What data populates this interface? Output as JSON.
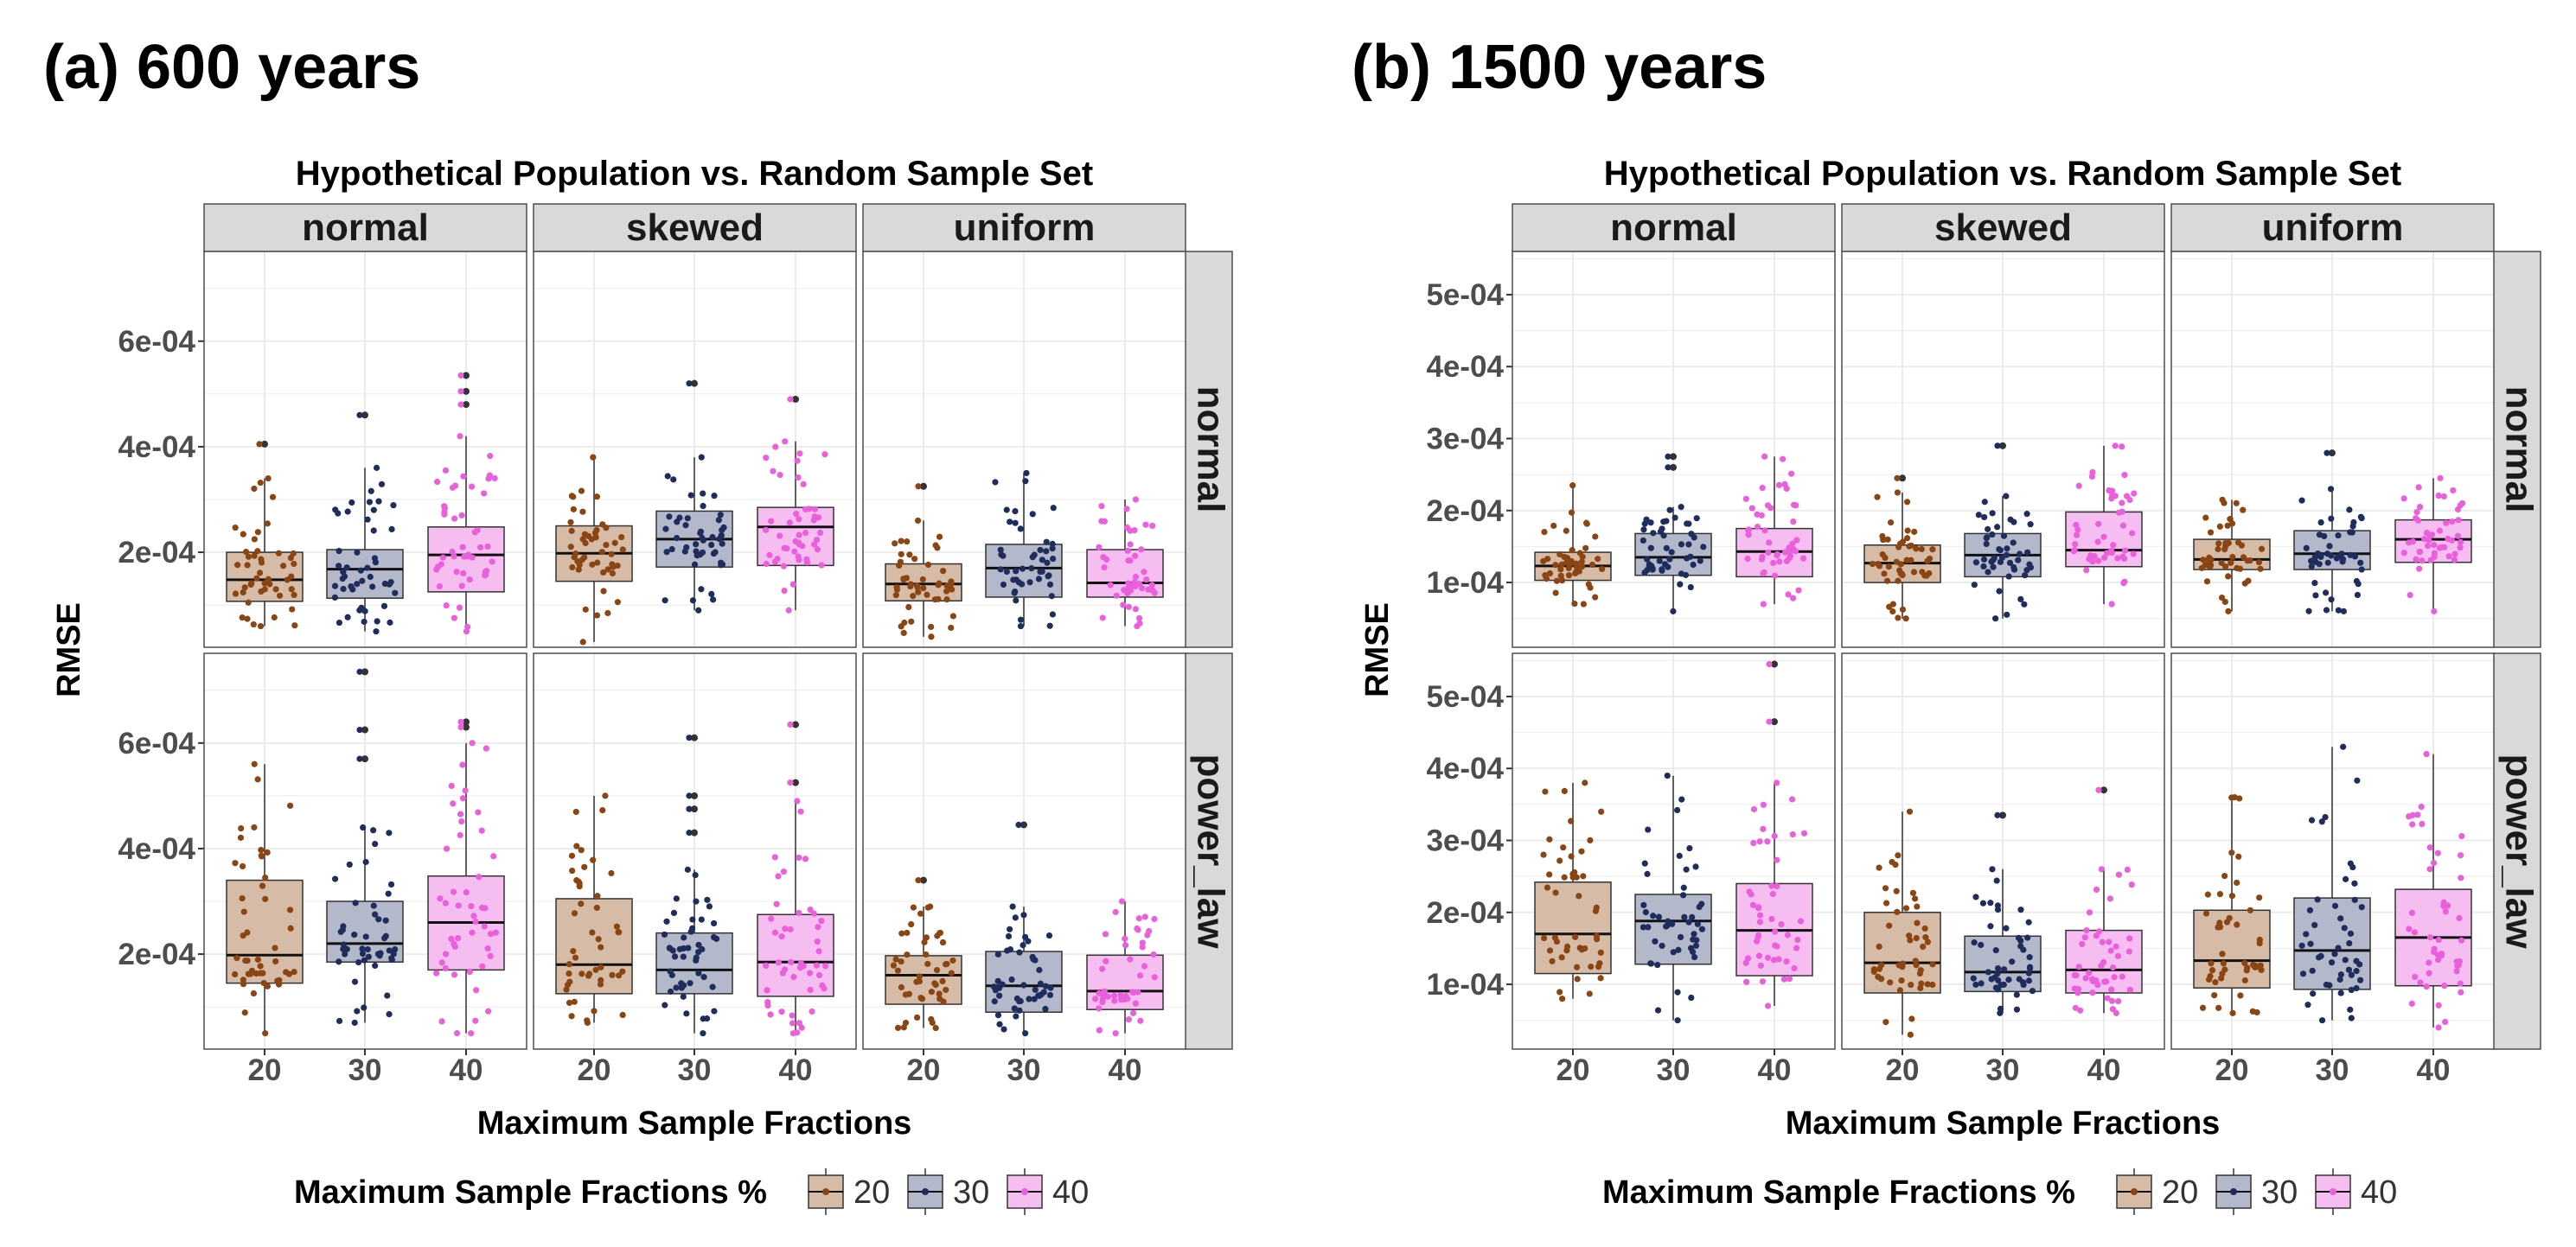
{
  "panels": [
    {
      "heading": "(a) 600 years"
    },
    {
      "heading": "(b) 1500 years"
    }
  ],
  "colors": {
    "fill": {
      "20": "#d6bca6",
      "30": "#b4b8cb",
      "40": "#f5bdf0"
    },
    "points": {
      "20": "#8b4513",
      "30": "#1f2d5c",
      "40": "#ea5fdb"
    },
    "strip_fill": "#d9d9d9",
    "grid": "#ebebeb",
    "panel_border": "#4d4d4d"
  },
  "chart_data": [
    {
      "type": "boxplot",
      "heading": "(a) 600 years",
      "title": "Hypothetical Population vs. Random Sample Set",
      "xlabel": "Maximum Sample Fractions",
      "ylabel": "RMSE",
      "facet_cols": [
        "normal",
        "skewed",
        "uniform"
      ],
      "facet_rows": [
        "normal",
        "power_law"
      ],
      "categories": [
        "20",
        "30",
        "40"
      ],
      "ylim": [
        2e-05,
        0.00077
      ],
      "yticks": [
        0.0002,
        0.0004,
        0.0006
      ],
      "ytick_labels": [
        "2e-04",
        "4e-04",
        "6e-04"
      ],
      "legend": {
        "title": "Maximum Sample Fractions %",
        "items": [
          "20",
          "30",
          "40"
        ],
        "position": "bottom"
      },
      "grid": true,
      "facets": [
        {
          "row": "normal",
          "col": "normal",
          "boxes": [
            {
              "category": "20",
              "min": 6e-05,
              "q1": 0.000107,
              "median": 0.000148,
              "q3": 0.0002,
              "max": 0.00034,
              "outliers": [
                0.000405
              ]
            },
            {
              "category": "30",
              "min": 5e-05,
              "q1": 0.000113,
              "median": 0.000168,
              "q3": 0.000205,
              "max": 0.00036,
              "outliers": [
                0.00046
              ]
            },
            {
              "category": "40",
              "min": 5e-05,
              "q1": 0.000125,
              "median": 0.000195,
              "q3": 0.000248,
              "max": 0.00042,
              "outliers": [
                0.00048,
                0.000505,
                0.000535
              ]
            }
          ]
        },
        {
          "row": "normal",
          "col": "skewed",
          "boxes": [
            {
              "category": "20",
              "min": 3e-05,
              "q1": 0.000145,
              "median": 0.000198,
              "q3": 0.00025,
              "max": 0.00038,
              "outliers": []
            },
            {
              "category": "30",
              "min": 9e-05,
              "q1": 0.000172,
              "median": 0.000225,
              "q3": 0.000278,
              "max": 0.00038,
              "outliers": [
                0.00052
              ]
            },
            {
              "category": "40",
              "min": 9e-05,
              "q1": 0.000175,
              "median": 0.000248,
              "q3": 0.000285,
              "max": 0.00041,
              "outliers": [
                0.00049
              ]
            }
          ]
        },
        {
          "row": "normal",
          "col": "uniform",
          "boxes": [
            {
              "category": "20",
              "min": 4e-05,
              "q1": 0.000108,
              "median": 0.00014,
              "q3": 0.000178,
              "max": 0.00026,
              "outliers": [
                0.000325
              ]
            },
            {
              "category": "30",
              "min": 6e-05,
              "q1": 0.000115,
              "median": 0.00017,
              "q3": 0.000215,
              "max": 0.00035,
              "outliers": []
            },
            {
              "category": "40",
              "min": 6e-05,
              "q1": 0.000115,
              "median": 0.000142,
              "q3": 0.000205,
              "max": 0.0003,
              "outliers": []
            }
          ]
        },
        {
          "row": "power_law",
          "col": "normal",
          "boxes": [
            {
              "category": "20",
              "min": 5e-05,
              "q1": 0.000145,
              "median": 0.000198,
              "q3": 0.00034,
              "max": 0.00056,
              "outliers": []
            },
            {
              "category": "30",
              "min": 7e-05,
              "q1": 0.000185,
              "median": 0.00022,
              "q3": 0.0003,
              "max": 0.00044,
              "outliers": [
                0.00057,
                0.000625,
                0.000735
              ]
            },
            {
              "category": "40",
              "min": 5e-05,
              "q1": 0.00017,
              "median": 0.00026,
              "q3": 0.000348,
              "max": 0.0006,
              "outliers": [
                0.00063,
                0.00064
              ]
            }
          ]
        },
        {
          "row": "power_law",
          "col": "skewed",
          "boxes": [
            {
              "category": "20",
              "min": 7e-05,
              "q1": 0.000125,
              "median": 0.00018,
              "q3": 0.000305,
              "max": 0.0005,
              "outliers": []
            },
            {
              "category": "30",
              "min": 5e-05,
              "q1": 0.000125,
              "median": 0.00017,
              "q3": 0.00024,
              "max": 0.00036,
              "outliers": [
                0.00043,
                0.000475,
                0.0005,
                0.00061
              ]
            },
            {
              "category": "40",
              "min": 5e-05,
              "q1": 0.00012,
              "median": 0.000185,
              "q3": 0.000275,
              "max": 0.00049,
              "outliers": [
                0.000525,
                0.000635
              ]
            }
          ]
        },
        {
          "row": "power_law",
          "col": "uniform",
          "boxes": [
            {
              "category": "20",
              "min": 6e-05,
              "q1": 0.000105,
              "median": 0.00016,
              "q3": 0.000197,
              "max": 0.00029,
              "outliers": [
                0.00034
              ]
            },
            {
              "category": "30",
              "min": 5e-05,
              "q1": 9e-05,
              "median": 0.00014,
              "q3": 0.000205,
              "max": 0.00029,
              "outliers": [
                0.000445
              ]
            },
            {
              "category": "40",
              "min": 5e-05,
              "q1": 9.5e-05,
              "median": 0.00013,
              "q3": 0.000198,
              "max": 0.0003,
              "outliers": []
            }
          ]
        }
      ]
    },
    {
      "type": "boxplot",
      "heading": "(b) 1500 years",
      "title": "Hypothetical Population vs. Random Sample Set",
      "xlabel": "Maximum Sample Fractions",
      "ylabel": "RMSE",
      "facet_cols": [
        "normal",
        "skewed",
        "uniform"
      ],
      "facet_rows": [
        "normal",
        "power_law"
      ],
      "categories": [
        "20",
        "30",
        "40"
      ],
      "ylim": [
        1e-05,
        0.00056
      ],
      "yticks": [
        0.0001,
        0.0002,
        0.0003,
        0.0004,
        0.0005
      ],
      "ytick_labels": [
        "1e-04",
        "2e-04",
        "3e-04",
        "4e-04",
        "5e-04"
      ],
      "legend": {
        "title": "Maximum Sample Fractions %",
        "items": [
          "20",
          "30",
          "40"
        ],
        "position": "bottom"
      },
      "grid": true,
      "facets": [
        {
          "row": "normal",
          "col": "normal",
          "boxes": [
            {
              "category": "20",
              "min": 7e-05,
              "q1": 0.000103,
              "median": 0.000123,
              "q3": 0.000142,
              "max": 0.000235,
              "outliers": []
            },
            {
              "category": "30",
              "min": 6e-05,
              "q1": 0.00011,
              "median": 0.000135,
              "q3": 0.000168,
              "max": 0.000205,
              "outliers": [
                0.00026,
                0.000275
              ]
            },
            {
              "category": "40",
              "min": 7e-05,
              "q1": 0.000108,
              "median": 0.000143,
              "q3": 0.000175,
              "max": 0.000275,
              "outliers": []
            }
          ]
        },
        {
          "row": "normal",
          "col": "skewed",
          "boxes": [
            {
              "category": "20",
              "min": 5e-05,
              "q1": 0.0001,
              "median": 0.000127,
              "q3": 0.000152,
              "max": 0.000225,
              "outliers": [
                0.000245
              ]
            },
            {
              "category": "30",
              "min": 5e-05,
              "q1": 0.000108,
              "median": 0.000138,
              "q3": 0.000168,
              "max": 0.00022,
              "outliers": [
                0.00029
              ]
            },
            {
              "category": "40",
              "min": 7e-05,
              "q1": 0.000122,
              "median": 0.000145,
              "q3": 0.000198,
              "max": 0.00029,
              "outliers": []
            }
          ]
        },
        {
          "row": "normal",
          "col": "uniform",
          "boxes": [
            {
              "category": "20",
              "min": 6e-05,
              "q1": 0.000118,
              "median": 0.000132,
              "q3": 0.00016,
              "max": 0.000215,
              "outliers": []
            },
            {
              "category": "30",
              "min": 6e-05,
              "q1": 0.000118,
              "median": 0.00014,
              "q3": 0.000172,
              "max": 0.00023,
              "outliers": [
                0.00028
              ]
            },
            {
              "category": "40",
              "min": 6e-05,
              "q1": 0.000128,
              "median": 0.00016,
              "q3": 0.000187,
              "max": 0.000245,
              "outliers": []
            }
          ]
        },
        {
          "row": "power_law",
          "col": "normal",
          "boxes": [
            {
              "category": "20",
              "min": 8e-05,
              "q1": 0.000115,
              "median": 0.00017,
              "q3": 0.000242,
              "max": 0.00038,
              "outliers": []
            },
            {
              "category": "30",
              "min": 5e-05,
              "q1": 0.000128,
              "median": 0.000188,
              "q3": 0.000225,
              "max": 0.00039,
              "outliers": []
            },
            {
              "category": "40",
              "min": 7e-05,
              "q1": 0.000112,
              "median": 0.000175,
              "q3": 0.00024,
              "max": 0.00038,
              "outliers": [
                0.000465,
                0.000545
              ]
            }
          ]
        },
        {
          "row": "power_law",
          "col": "skewed",
          "boxes": [
            {
              "category": "20",
              "min": 3e-05,
              "q1": 8.8e-05,
              "median": 0.00013,
              "q3": 0.0002,
              "max": 0.00034,
              "outliers": []
            },
            {
              "category": "30",
              "min": 6e-05,
              "q1": 9e-05,
              "median": 0.000117,
              "q3": 0.000167,
              "max": 0.00026,
              "outliers": [
                0.000335
              ]
            },
            {
              "category": "40",
              "min": 6e-05,
              "q1": 8.8e-05,
              "median": 0.00012,
              "q3": 0.000175,
              "max": 0.00026,
              "outliers": [
                0.00037
              ]
            }
          ]
        },
        {
          "row": "power_law",
          "col": "uniform",
          "boxes": [
            {
              "category": "20",
              "min": 6e-05,
              "q1": 9.5e-05,
              "median": 0.000133,
              "q3": 0.000203,
              "max": 0.00036,
              "outliers": []
            },
            {
              "category": "30",
              "min": 5e-05,
              "q1": 9.3e-05,
              "median": 0.000147,
              "q3": 0.00022,
              "max": 0.00043,
              "outliers": []
            },
            {
              "category": "40",
              "min": 4e-05,
              "q1": 9.8e-05,
              "median": 0.000165,
              "q3": 0.000232,
              "max": 0.00042,
              "outliers": []
            }
          ]
        }
      ]
    }
  ]
}
